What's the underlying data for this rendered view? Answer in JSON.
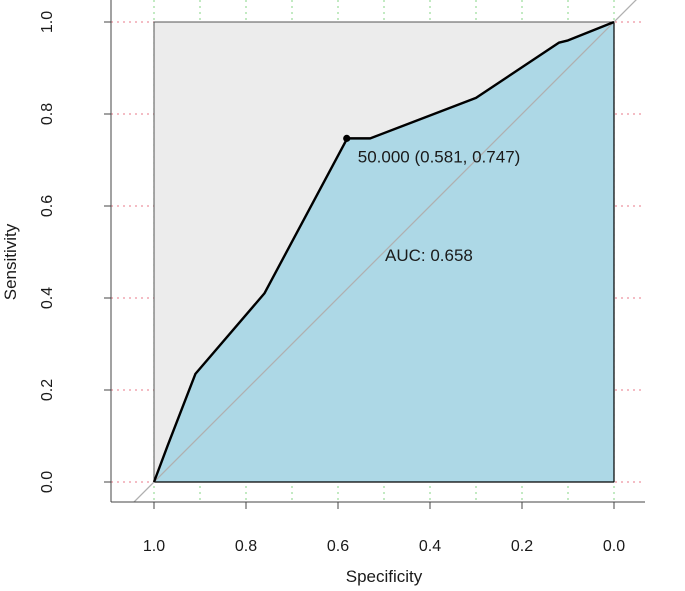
{
  "chart_data": {
    "type": "line",
    "title": "",
    "xlabel": "Specificity",
    "ylabel": "Sensitivity",
    "xlim": [
      1.1,
      -0.1
    ],
    "ylim": [
      0.0,
      1.0
    ],
    "x_reversed": true,
    "x_ticks": [
      1.0,
      0.8,
      0.6,
      0.4,
      0.2,
      0.0
    ],
    "x_tick_labels": [
      "1.0",
      "0.8",
      "0.6",
      "0.4",
      "0.2",
      "0.0"
    ],
    "y_ticks": [
      0.0,
      0.2,
      0.4,
      0.6,
      0.8,
      1.0
    ],
    "y_tick_labels": [
      "0.0",
      "0.2",
      "0.4",
      "0.6",
      "0.8",
      "1.0"
    ],
    "grid": true,
    "series": [
      {
        "x": [
          1.0,
          0.97,
          0.91,
          0.76,
          0.58,
          0.53,
          0.3,
          0.12,
          0.1,
          0.0
        ],
        "y": [
          0.0,
          0.08,
          0.235,
          0.41,
          0.747,
          0.747,
          0.835,
          0.955,
          0.96,
          1.0
        ]
      }
    ],
    "reference_line": {
      "x": [
        1.0,
        0.0
      ],
      "y": [
        0.0,
        1.0
      ]
    },
    "threshold_point": {
      "specificity": 0.581,
      "sensitivity": 0.747,
      "label": "50.000 (0.581, 0.747)"
    },
    "auc_label": "AUC: 0.658",
    "colors": {
      "auc_fill": "#add8e6",
      "panel_fill": "#ececec",
      "roc_line": "#000000",
      "diagonal": "#b0b0b0",
      "grid_h": "#e87a8a",
      "grid_v": "#90d890"
    }
  }
}
